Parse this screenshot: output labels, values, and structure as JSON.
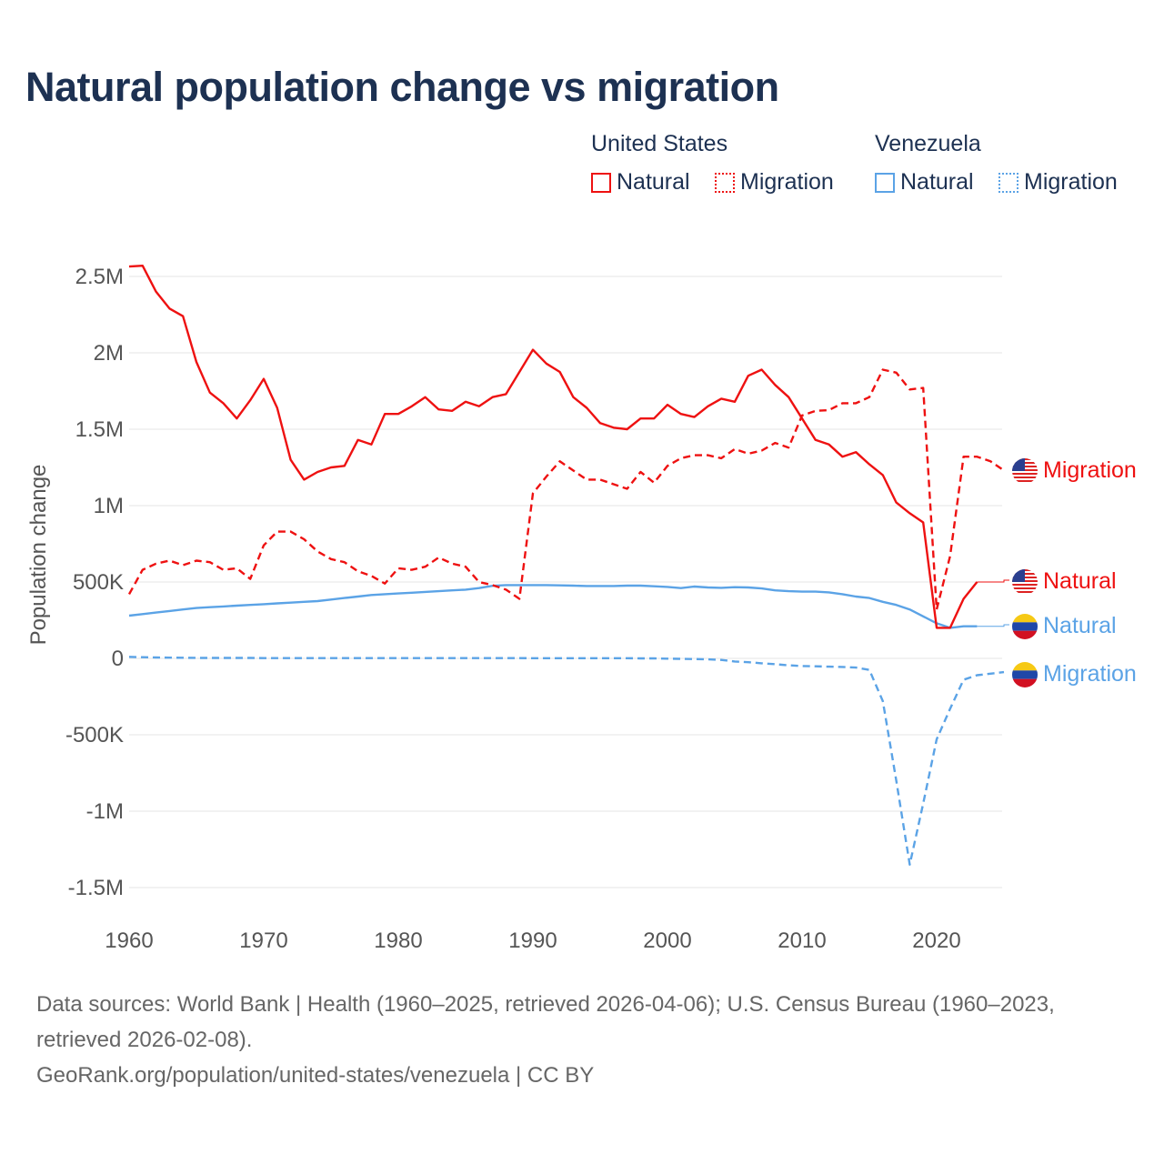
{
  "title": "Natural population change vs migration",
  "legend": [
    {
      "group": "United States",
      "items": [
        {
          "label": "Natural",
          "style": "solid",
          "color": "#ee1111"
        },
        {
          "label": "Migration",
          "style": "dotted",
          "color": "#ee1111"
        }
      ]
    },
    {
      "group": "Venezuela",
      "items": [
        {
          "label": "Natural",
          "style": "solid",
          "color": "#5ba3e6"
        },
        {
          "label": "Migration",
          "style": "dotted",
          "color": "#5ba3e6"
        }
      ]
    }
  ],
  "footer": {
    "line1": "Data sources: World Bank | Health (1960–2025, retrieved 2026-04-06); U.S. Census Bureau (1960–2023,",
    "line2": "retrieved 2026-02-08).",
    "line3": "GeoRank.org/population/united-states/venezuela | CC BY"
  },
  "chart_data": {
    "type": "line",
    "title": "Natural population change vs migration",
    "ylabel": "Population change",
    "xlabel": "",
    "ylim": [
      -1500000,
      2600000
    ],
    "xlim": [
      1960,
      2025
    ],
    "yticks": [
      {
        "v": 2500000,
        "label": "2.5M"
      },
      {
        "v": 2000000,
        "label": "2M"
      },
      {
        "v": 1500000,
        "label": "1.5M"
      },
      {
        "v": 1000000,
        "label": "1M"
      },
      {
        "v": 500000,
        "label": "500K"
      },
      {
        "v": 0,
        "label": "0"
      },
      {
        "v": -500000,
        "label": "-500K"
      },
      {
        "v": -1000000,
        "label": "-1M"
      },
      {
        "v": -1500000,
        "label": "-1.5M"
      }
    ],
    "xticks": [
      1960,
      1970,
      1980,
      1990,
      2000,
      2010,
      2020
    ],
    "grid": true,
    "series": [
      {
        "name": "United States Natural",
        "label": "Natural",
        "country": "us",
        "color": "#ee1111",
        "dash": false,
        "start": 1960,
        "values": [
          2.565,
          2.57,
          2.4,
          2.29,
          2.24,
          1.94,
          1.74,
          1.67,
          1.57,
          1.69,
          1.83,
          1.64,
          1.3,
          1.17,
          1.22,
          1.25,
          1.26,
          1.43,
          1.4,
          1.6,
          1.6,
          1.65,
          1.71,
          1.63,
          1.62,
          1.68,
          1.65,
          1.71,
          1.73,
          1.875,
          2.02,
          1.93,
          1.875,
          1.71,
          1.64,
          1.54,
          1.51,
          1.5,
          1.57,
          1.57,
          1.66,
          1.6,
          1.58,
          1.65,
          1.7,
          1.68,
          1.85,
          1.89,
          1.79,
          1.71,
          1.57,
          1.43,
          1.4,
          1.32,
          1.35,
          1.27,
          1.2,
          1.02,
          0.95,
          0.89,
          0.2,
          0.2,
          0.39,
          0.5
        ]
      },
      {
        "name": "United States Migration",
        "label": "Migration",
        "country": "us",
        "color": "#ee1111",
        "dash": true,
        "start": 1960,
        "values": [
          0.42,
          0.58,
          0.62,
          0.64,
          0.61,
          0.64,
          0.63,
          0.58,
          0.59,
          0.52,
          0.74,
          0.83,
          0.83,
          0.78,
          0.7,
          0.65,
          0.63,
          0.57,
          0.54,
          0.49,
          0.59,
          0.58,
          0.6,
          0.66,
          0.62,
          0.6,
          0.5,
          0.48,
          0.45,
          0.39,
          1.08,
          1.19,
          1.29,
          1.23,
          1.17,
          1.17,
          1.14,
          1.11,
          1.22,
          1.15,
          1.26,
          1.31,
          1.33,
          1.33,
          1.31,
          1.37,
          1.34,
          1.36,
          1.41,
          1.38,
          1.59,
          1.62,
          1.625,
          1.67,
          1.67,
          1.71,
          1.89,
          1.87,
          1.76,
          1.77,
          0.32,
          0.67,
          1.32,
          1.32,
          1.29,
          1.23
        ]
      },
      {
        "name": "Venezuela Natural",
        "label": "Natural",
        "country": "ve",
        "color": "#5ba3e6",
        "dash": false,
        "start": 1960,
        "values": [
          0.28,
          0.29,
          0.3,
          0.31,
          0.32,
          0.33,
          0.335,
          0.34,
          0.345,
          0.35,
          0.355,
          0.36,
          0.365,
          0.37,
          0.375,
          0.385,
          0.395,
          0.405,
          0.415,
          0.42,
          0.425,
          0.43,
          0.435,
          0.44,
          0.445,
          0.45,
          0.46,
          0.475,
          0.48,
          0.48,
          0.48,
          0.48,
          0.478,
          0.476,
          0.474,
          0.474,
          0.474,
          0.476,
          0.476,
          0.472,
          0.468,
          0.46,
          0.47,
          0.464,
          0.462,
          0.466,
          0.464,
          0.458,
          0.445,
          0.44,
          0.437,
          0.437,
          0.432,
          0.42,
          0.405,
          0.395,
          0.37,
          0.35,
          0.32,
          0.275,
          0.23,
          0.2,
          0.21,
          0.21
        ]
      },
      {
        "name": "Venezuela Migration",
        "label": "Migration",
        "country": "ve",
        "color": "#5ba3e6",
        "dash": true,
        "start": 1960,
        "values": [
          0.01,
          0.008,
          0.006,
          0.005,
          0.004,
          0.003,
          0.003,
          0.003,
          0.003,
          0.003,
          0.002,
          0.002,
          0.002,
          0.002,
          0.002,
          0.002,
          0.002,
          0.002,
          0.002,
          0.002,
          0.002,
          0.002,
          0.002,
          0.002,
          0.002,
          0.002,
          0.002,
          0.002,
          0.002,
          0.002,
          0.001,
          0.001,
          0.001,
          0.001,
          0.001,
          0.001,
          0.001,
          0.001,
          0.0,
          0.0,
          -0.002,
          -0.003,
          -0.004,
          -0.006,
          -0.01,
          -0.02,
          -0.025,
          -0.032,
          -0.038,
          -0.045,
          -0.05,
          -0.052,
          -0.054,
          -0.056,
          -0.06,
          -0.075,
          -0.28,
          -0.8,
          -1.35,
          -0.95,
          -0.53,
          -0.33,
          -0.14,
          -0.11,
          -0.1,
          -0.09
        ]
      }
    ],
    "end_labels": [
      {
        "text": "Migration",
        "country": "us",
        "color": "#ee1111",
        "value": 1.23
      },
      {
        "text": "Natural",
        "country": "us",
        "color": "#ee1111",
        "value": 0.5
      },
      {
        "text": "Natural",
        "country": "ve",
        "color": "#5ba3e6",
        "value": 0.21
      },
      {
        "text": "Migration",
        "country": "ve",
        "color": "#5ba3e6",
        "value": -0.09
      }
    ]
  }
}
